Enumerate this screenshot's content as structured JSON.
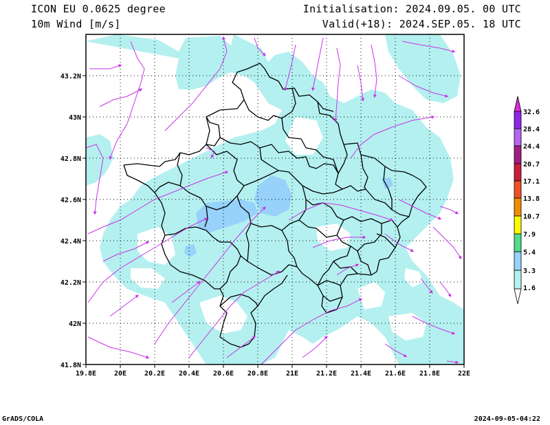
{
  "header": {
    "model": "ICON EU 0.0625 degree",
    "variable": "10m Wind [m/s]",
    "init": "Initialisation: 2024.09.05. 00 UTC",
    "valid": "Valid(+18): 2024.SEP.05. 18 UTC"
  },
  "map": {
    "lon_ticks": [
      "19.8E",
      "20E",
      "20.2E",
      "20.4E",
      "20.6E",
      "20.8E",
      "21E",
      "21.2E",
      "21.4E",
      "21.6E",
      "21.8E",
      "22E"
    ],
    "lat_ticks": [
      "43.2N",
      "43N",
      "42.8N",
      "42.6N",
      "42.4N",
      "42.2N",
      "42N",
      "41.8N"
    ],
    "extent": {
      "lon_min": 19.8,
      "lon_max": 22.0,
      "lat_min": 41.8,
      "lat_max": 43.4
    }
  },
  "colorbar": {
    "labels": [
      "1.6",
      "3.3",
      "5.4",
      "7.9",
      "10.7",
      "13.8",
      "17.1",
      "20.7",
      "24.4",
      "28.4",
      "32.6"
    ],
    "colors": [
      "#b4f0f0",
      "#96d2fa",
      "#50dc8c",
      "#fafa00",
      "#f08c00",
      "#f05028",
      "#c81e3c",
      "#a01e82",
      "#b464f0",
      "#8c28e6",
      "#d82ad8"
    ]
  },
  "colors": {
    "wind_band1": "#b4f0f0",
    "wind_band2": "#96d2fa",
    "streamline": "#c832e6",
    "border": "#000000",
    "grid": "#000000"
  },
  "footer": {
    "left": "GrADS/COLA",
    "right": "2024-09-05-04:22"
  }
}
